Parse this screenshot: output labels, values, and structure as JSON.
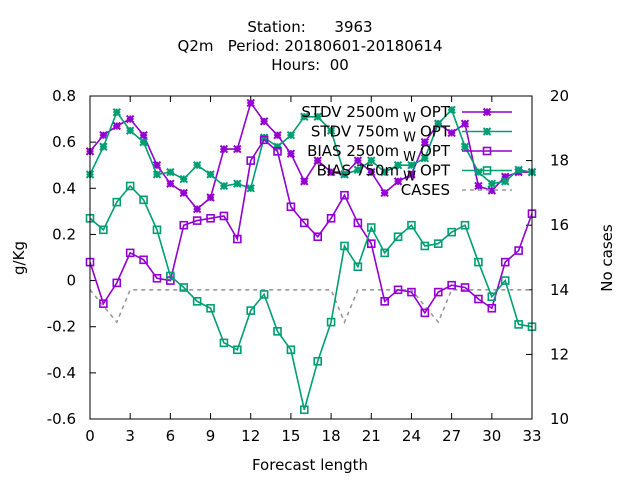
{
  "chart_data": {
    "type": "line",
    "title_lines": [
      "Station:      3963",
      "Q2m   Period: 20180601-20180614",
      "Hours:  00"
    ],
    "xlabel": "Forecast length",
    "ylabel": "g/Kg",
    "y2label": "No cases",
    "xlim": [
      0,
      33
    ],
    "ylim": [
      -0.6,
      0.8
    ],
    "y2lim": [
      10,
      20
    ],
    "xticks": [
      "0",
      "3",
      "6",
      "9",
      "12",
      "15",
      "18",
      "21",
      "24",
      "27",
      "30",
      "33"
    ],
    "yticks": [
      "-0.6",
      "-0.4",
      "-0.2",
      "0",
      "0.2",
      "0.4",
      "0.6",
      "0.8"
    ],
    "y2ticks": [
      "10",
      "12",
      "14",
      "16",
      "18",
      "20"
    ],
    "x": [
      0,
      1,
      2,
      3,
      4,
      5,
      6,
      7,
      8,
      9,
      10,
      11,
      12,
      13,
      14,
      15,
      16,
      17,
      18,
      19,
      20,
      21,
      22,
      23,
      24,
      25,
      26,
      27,
      28,
      29,
      30,
      31,
      32,
      33
    ],
    "series": [
      {
        "name": "STDV 2500m",
        "subscript": "W",
        "name_suffix": "OPT",
        "color": "#9400d3",
        "marker": "x",
        "axis": "y1",
        "values": [
          0.56,
          0.63,
          0.67,
          0.7,
          0.63,
          0.5,
          0.42,
          0.38,
          0.31,
          0.36,
          0.57,
          0.57,
          0.77,
          0.69,
          0.63,
          0.55,
          0.43,
          0.52,
          0.47,
          0.46,
          0.52,
          0.47,
          0.38,
          0.43,
          0.46,
          0.6,
          0.68,
          0.64,
          0.68,
          0.41,
          0.39,
          0.45,
          0.47,
          0.47
        ]
      },
      {
        "name": "STDV 750m",
        "subscript": "W",
        "name_suffix": "OPT",
        "color": "#009e73",
        "marker": "x",
        "axis": "y1",
        "values": [
          0.46,
          0.58,
          0.73,
          0.65,
          0.6,
          0.46,
          0.47,
          0.44,
          0.5,
          0.46,
          0.41,
          0.42,
          0.4,
          0.62,
          0.58,
          0.63,
          0.71,
          0.71,
          0.65,
          0.46,
          0.48,
          0.52,
          0.47,
          0.5,
          0.5,
          0.53,
          0.68,
          0.74,
          0.58,
          0.47,
          0.42,
          0.43,
          0.48,
          0.47
        ]
      },
      {
        "name": "BIAS 2500m",
        "subscript": "W",
        "name_suffix": "OPT",
        "color": "#9400d3",
        "marker": "square",
        "axis": "y1",
        "values": [
          0.08,
          -0.1,
          -0.01,
          0.12,
          0.09,
          0.01,
          0.0,
          0.24,
          0.26,
          0.27,
          0.28,
          0.18,
          0.52,
          0.61,
          0.56,
          0.32,
          0.25,
          0.19,
          0.27,
          0.37,
          0.25,
          0.16,
          -0.09,
          -0.04,
          -0.05,
          -0.14,
          -0.05,
          -0.02,
          -0.03,
          -0.08,
          -0.12,
          0.08,
          0.13,
          0.29
        ]
      },
      {
        "name": "BIAS 750m",
        "subscript": "W",
        "name_suffix": "OPT",
        "color": "#009e73",
        "marker": "square",
        "axis": "y1",
        "values": [
          0.27,
          0.22,
          0.34,
          0.41,
          0.35,
          0.22,
          0.02,
          -0.03,
          -0.09,
          -0.12,
          -0.27,
          -0.3,
          -0.13,
          -0.06,
          -0.22,
          -0.3,
          -0.56,
          -0.35,
          -0.18,
          0.15,
          0.06,
          0.23,
          0.12,
          0.19,
          0.24,
          0.15,
          0.16,
          0.21,
          0.24,
          0.08,
          -0.07,
          0.0,
          -0.19,
          -0.2
        ]
      },
      {
        "name": "CASES",
        "color": "#999999",
        "marker": "none",
        "dashed": true,
        "axis": "y2",
        "values": [
          14,
          13.5,
          13,
          14,
          14,
          14,
          14,
          14,
          14,
          14,
          14,
          14,
          14,
          14,
          14,
          14,
          14,
          14,
          14,
          13,
          14,
          14,
          14,
          14,
          14,
          13.5,
          13,
          14,
          14,
          14,
          14,
          14,
          14,
          14
        ]
      }
    ],
    "grid": false,
    "legend_position": "top-right"
  }
}
